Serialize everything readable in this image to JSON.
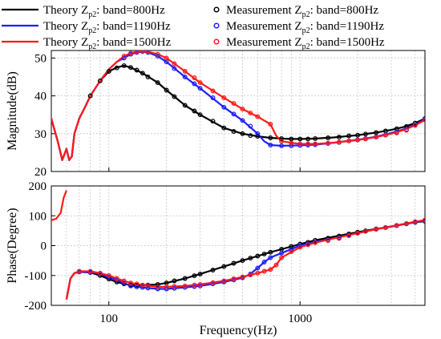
{
  "chart_data": [
    {
      "type": "line",
      "id": "magnitude",
      "xscale": "log",
      "xlim": [
        50,
        4500
      ],
      "ylim": [
        20,
        52
      ],
      "ylabel": "Magnitude(dB)",
      "xlabel": "",
      "yticks": [
        20,
        30,
        40,
        50
      ],
      "xticks": [
        100,
        1000
      ],
      "grid": true,
      "legend": {
        "placement": "top",
        "entries": [
          {
            "series": "Theory",
            "pre": "Theory ",
            "base": "Z",
            "sub": "p2",
            "post": ": band=800Hz",
            "marker": "line",
            "color": "#000000"
          },
          {
            "series": "Theory",
            "pre": "Theory ",
            "base": "Z",
            "sub": "p2",
            "post": ": band=1190Hz",
            "marker": "line",
            "color": "#1f1fff"
          },
          {
            "series": "Theory",
            "pre": "Theory ",
            "base": "Z",
            "sub": "p2",
            "post": ": band=1500Hz",
            "marker": "line",
            "color": "#ff1a1a"
          },
          {
            "series": "Measurement",
            "pre": "Measurement ",
            "base": "Z",
            "sub": "p2",
            "post": ": band=800Hz",
            "marker": "circle",
            "color": "#000000"
          },
          {
            "series": "Measurement",
            "pre": "Measurement ",
            "base": "Z",
            "sub": "p2",
            "post": ": band=1190Hz",
            "marker": "circle",
            "color": "#1f1fff"
          },
          {
            "series": "Measurement",
            "pre": "Measurement ",
            "base": "Z",
            "sub": "p2",
            "post": ": band=1500Hz",
            "marker": "circle",
            "color": "#ff1a1a"
          }
        ]
      },
      "series": [
        {
          "color": "#000000",
          "x": [
            50,
            54,
            57,
            60,
            62,
            64,
            66,
            70,
            75,
            80,
            90,
            100,
            110,
            120,
            130,
            150,
            180,
            200,
            250,
            300,
            400,
            500,
            600,
            700,
            800,
            900,
            1000,
            1200,
            1500,
            2000,
            2500,
            3000,
            3500,
            4000,
            4500
          ],
          "y": [
            34,
            28,
            23,
            26,
            23,
            24,
            30,
            34,
            37,
            40,
            44,
            46.5,
            47.5,
            48,
            47.5,
            46,
            43.5,
            41.5,
            37.5,
            35,
            31.5,
            30,
            29.3,
            28.9,
            28.7,
            28.6,
            28.6,
            28.7,
            29,
            29.6,
            30.3,
            31,
            31.8,
            32.8,
            34
          ]
        },
        {
          "color": "#1f1fff",
          "x": [
            50,
            54,
            57,
            60,
            62,
            64,
            66,
            70,
            75,
            80,
            90,
            100,
            110,
            120,
            130,
            140,
            150,
            160,
            180,
            200,
            250,
            300,
            400,
            500,
            600,
            650,
            700,
            800,
            1000,
            1200,
            1500,
            2000,
            2500,
            3000,
            3500,
            4000,
            4500
          ],
          "y": [
            34,
            28,
            23,
            26,
            23,
            24,
            30,
            34,
            37,
            40,
            44,
            47,
            49,
            50,
            51,
            51.5,
            51.7,
            51.5,
            50.5,
            49,
            45,
            42,
            37,
            33.5,
            30,
            28,
            27,
            26.8,
            26.9,
            27.1,
            27.6,
            28.4,
            29.2,
            30.2,
            31.2,
            32.4,
            33.8
          ]
        },
        {
          "color": "#ff1a1a",
          "x": [
            50,
            54,
            57,
            60,
            62,
            64,
            66,
            70,
            75,
            80,
            90,
            100,
            110,
            120,
            130,
            140,
            150,
            160,
            180,
            200,
            250,
            300,
            400,
            500,
            600,
            700,
            750,
            800,
            1000,
            1200,
            1500,
            2000,
            2500,
            3000,
            3500,
            4000,
            4500
          ],
          "y": [
            34,
            28,
            23,
            26,
            23,
            24,
            30,
            34,
            37,
            40,
            44,
            47,
            49,
            50.5,
            51.3,
            51.7,
            51.8,
            51.7,
            51,
            50,
            46.5,
            43.5,
            39.5,
            36.5,
            34.5,
            32.5,
            29.5,
            28,
            27.3,
            27.3,
            27.6,
            28.3,
            29.1,
            30,
            31,
            32.2,
            33.6
          ]
        }
      ],
      "markers": [
        {
          "color": "#000000",
          "x": [
            80,
            90,
            100,
            110,
            120,
            130,
            140,
            150,
            160,
            180,
            200,
            220,
            250,
            280,
            300,
            350,
            400,
            450,
            500,
            550,
            600,
            700,
            800,
            900,
            1000,
            1100,
            1200,
            1400,
            1600,
            1800,
            2000,
            2200,
            2500,
            2800,
            3200,
            3600,
            4000,
            4500
          ],
          "y": [
            40,
            44,
            46.5,
            47.4,
            48,
            47.5,
            46.8,
            46,
            45,
            43.5,
            41.5,
            39.8,
            37.5,
            36,
            35,
            33.3,
            31.5,
            30.6,
            30,
            29.5,
            29.3,
            28.9,
            28.7,
            28.6,
            28.6,
            28.6,
            28.7,
            28.9,
            29.1,
            29.4,
            29.6,
            29.9,
            30.3,
            30.7,
            31.3,
            31.9,
            32.8,
            34
          ]
        },
        {
          "color": "#1f1fff",
          "x": [
            120,
            130,
            140,
            150,
            160,
            180,
            200,
            220,
            250,
            280,
            300,
            350,
            400,
            450,
            500,
            550,
            600,
            700,
            800,
            900,
            1000,
            1100,
            1200,
            1400,
            1600,
            1800,
            2000,
            2200,
            2500,
            2800,
            3200,
            3600,
            4000,
            4500
          ],
          "y": [
            50,
            51,
            51.5,
            51.7,
            51.5,
            50.5,
            49,
            47.2,
            45,
            43.2,
            42,
            39.5,
            37,
            35.2,
            33.5,
            32,
            30,
            27,
            26.8,
            26.8,
            26.9,
            27,
            27.1,
            27.4,
            27.7,
            28.1,
            28.4,
            28.7,
            29.2,
            29.7,
            30.4,
            31.1,
            32.4,
            33.8
          ]
        },
        {
          "color": "#ff1a1a",
          "x": [
            120,
            130,
            140,
            150,
            160,
            180,
            200,
            220,
            250,
            280,
            300,
            350,
            400,
            450,
            500,
            550,
            600,
            700,
            800,
            900,
            1000,
            1100,
            1200,
            1400,
            1600,
            1800,
            2000,
            2200,
            2500,
            2800,
            3200,
            3600,
            4000,
            4500
          ],
          "y": [
            50.5,
            51.3,
            51.7,
            51.8,
            51.7,
            51,
            50,
            48.5,
            46.5,
            44.8,
            43.5,
            41.3,
            39.5,
            38,
            36.5,
            35.5,
            34.5,
            32.5,
            28,
            27.5,
            27.3,
            27.3,
            27.3,
            27.5,
            27.8,
            28.1,
            28.3,
            28.6,
            29.1,
            29.6,
            30.2,
            30.9,
            32.2,
            33.6
          ]
        }
      ]
    },
    {
      "type": "line",
      "id": "phase",
      "xscale": "log",
      "xlim": [
        50,
        4500
      ],
      "ylim": [
        -200,
        200
      ],
      "ylabel": "Phase(Degree)",
      "xlabel": "Frequency(Hz)",
      "yticks": [
        -200,
        -100,
        0,
        100,
        200
      ],
      "xticks": [
        100,
        1000
      ],
      "grid": true,
      "series": [
        {
          "color": "#ff1a1a",
          "x": [
            50,
            53,
            56,
            58,
            60
          ],
          "y": [
            85,
            90,
            110,
            160,
            185
          ]
        },
        {
          "color": "#000000",
          "x": [
            60,
            63,
            66,
            70,
            80,
            90,
            100,
            110,
            120,
            130,
            150,
            180,
            200,
            250,
            300,
            400,
            500,
            600,
            700,
            800,
            1000,
            1200,
            1500,
            2000,
            2500,
            3000,
            3500,
            4000,
            4500
          ],
          "y": [
            -180,
            -110,
            -92,
            -88,
            -90,
            -100,
            -112,
            -122,
            -128,
            -132,
            -133,
            -130,
            -125,
            -110,
            -95,
            -70,
            -50,
            -35,
            -22,
            -12,
            5,
            18,
            30,
            45,
            56,
            64,
            72,
            78,
            82
          ]
        },
        {
          "color": "#1f1fff",
          "x": [
            60,
            63,
            66,
            70,
            80,
            90,
            100,
            110,
            120,
            130,
            150,
            180,
            200,
            250,
            300,
            400,
            500,
            550,
            600,
            650,
            700,
            800,
            1000,
            1200,
            1500,
            2000,
            2500,
            3000,
            3500,
            4000,
            4500
          ],
          "y": [
            -180,
            -110,
            -92,
            -88,
            -89,
            -95,
            -105,
            -115,
            -125,
            -135,
            -140,
            -145,
            -145,
            -140,
            -135,
            -122,
            -108,
            -95,
            -75,
            -55,
            -40,
            -25,
            0,
            12,
            25,
            42,
            55,
            64,
            72,
            78,
            84
          ]
        },
        {
          "color": "#ff1a1a",
          "x": [
            60,
            63,
            66,
            70,
            80,
            90,
            100,
            110,
            120,
            130,
            150,
            180,
            200,
            250,
            300,
            400,
            500,
            600,
            700,
            750,
            800,
            1000,
            1200,
            1500,
            2000,
            2500,
            3000,
            3500,
            4000,
            4500
          ],
          "y": [
            -180,
            -110,
            -92,
            -86,
            -86,
            -92,
            -100,
            -110,
            -118,
            -125,
            -132,
            -138,
            -138,
            -135,
            -130,
            -118,
            -105,
            -92,
            -80,
            -65,
            -40,
            -5,
            10,
            24,
            42,
            55,
            65,
            73,
            80,
            86
          ]
        }
      ],
      "markers": [
        {
          "color": "#000000",
          "x": [
            70,
            80,
            90,
            100,
            110,
            120,
            130,
            140,
            150,
            160,
            180,
            200,
            220,
            250,
            280,
            300,
            350,
            400,
            450,
            500,
            550,
            600,
            650,
            700,
            800,
            900,
            1000,
            1100,
            1200,
            1400,
            1600,
            1800,
            2000,
            2200,
            2500,
            2800,
            3200,
            3600,
            4000,
            4500
          ],
          "y": [
            -88,
            -90,
            -100,
            -112,
            -122,
            -128,
            -132,
            -133,
            -133,
            -132,
            -130,
            -125,
            -118,
            -110,
            -101,
            -95,
            -82,
            -70,
            -59,
            -50,
            -42,
            -35,
            -28,
            -22,
            -12,
            -3,
            5,
            11,
            18,
            25,
            32,
            39,
            45,
            50,
            56,
            61,
            67,
            73,
            78,
            82
          ]
        },
        {
          "color": "#1f1fff",
          "x": [
            70,
            80,
            90,
            100,
            110,
            120,
            130,
            140,
            150,
            160,
            180,
            200,
            220,
            250,
            280,
            300,
            350,
            400,
            450,
            500,
            550,
            600,
            650,
            700,
            800,
            900,
            1000,
            1100,
            1200,
            1400,
            1600,
            1800,
            2000,
            2200,
            2500,
            2800,
            3200,
            3600,
            4000,
            4500
          ],
          "y": [
            -88,
            -89,
            -95,
            -105,
            -115,
            -125,
            -135,
            -138,
            -140,
            -142,
            -145,
            -145,
            -143,
            -140,
            -137,
            -135,
            -128,
            -122,
            -115,
            -108,
            -95,
            -75,
            -55,
            -40,
            -25,
            -12,
            0,
            6,
            12,
            19,
            27,
            35,
            42,
            48,
            55,
            60,
            67,
            73,
            78,
            84
          ]
        },
        {
          "color": "#ff1a1a",
          "x": [
            70,
            80,
            90,
            100,
            110,
            120,
            130,
            140,
            150,
            160,
            180,
            200,
            220,
            250,
            280,
            300,
            350,
            400,
            450,
            500,
            550,
            600,
            650,
            700,
            750,
            800,
            900,
            1000,
            1100,
            1200,
            1400,
            1600,
            1800,
            2000,
            2200,
            2500,
            2800,
            3200,
            3600,
            4000,
            4500
          ],
          "y": [
            -86,
            -86,
            -92,
            -100,
            -110,
            -118,
            -125,
            -128,
            -132,
            -134,
            -138,
            -138,
            -137,
            -135,
            -132,
            -130,
            -124,
            -118,
            -111,
            -105,
            -98,
            -92,
            -86,
            -80,
            -65,
            -40,
            -20,
            -5,
            3,
            10,
            17,
            24,
            33,
            42,
            48,
            55,
            61,
            68,
            74,
            80,
            86
          ]
        }
      ]
    }
  ]
}
